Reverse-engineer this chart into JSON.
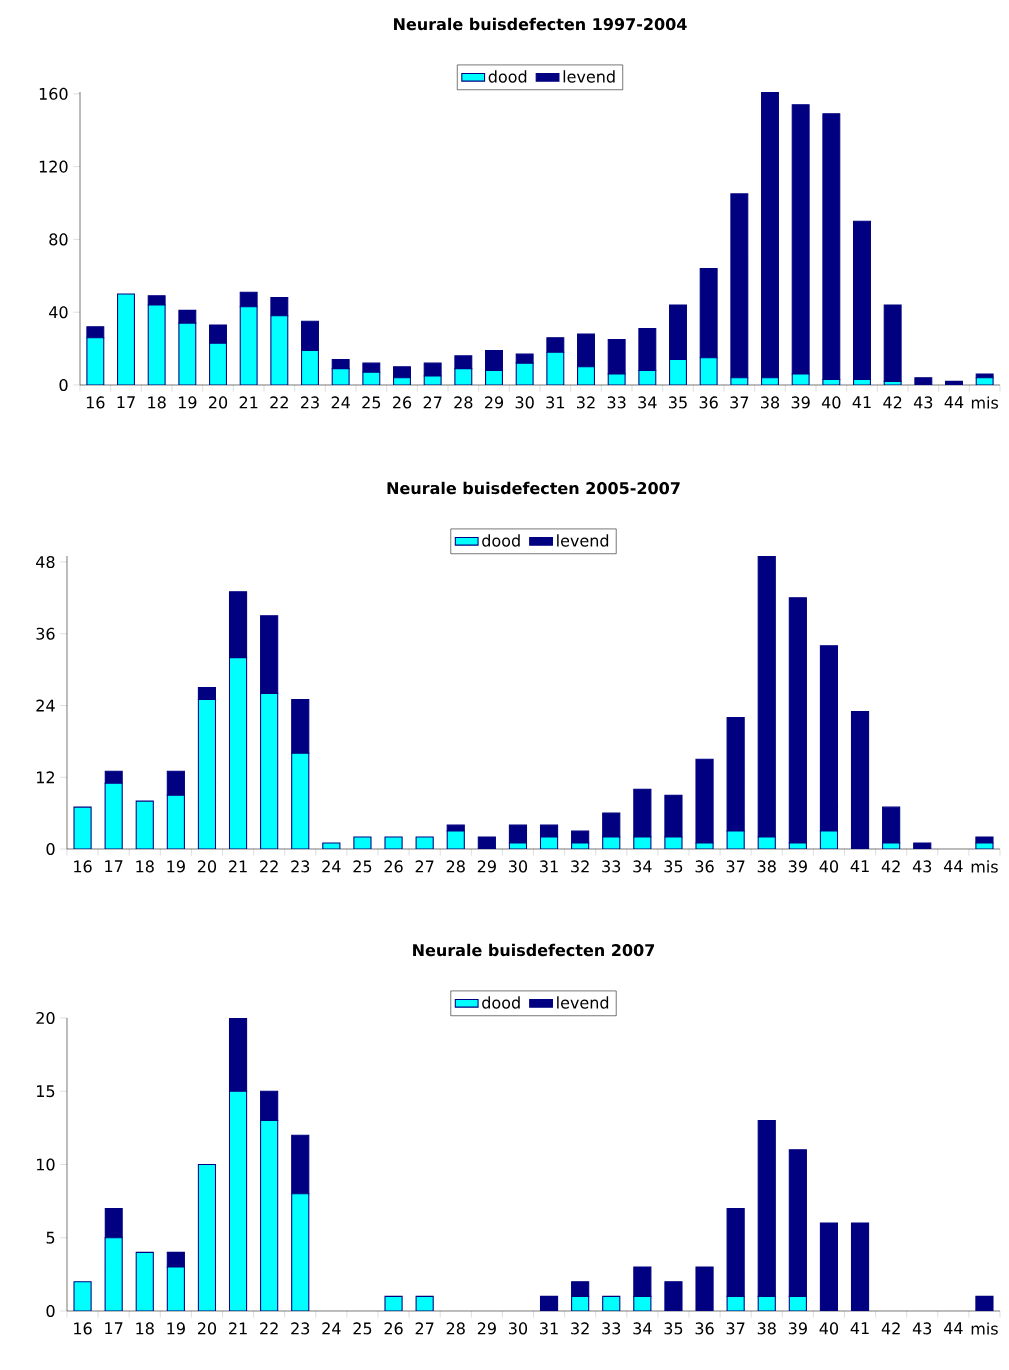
{
  "chart_data": [
    {
      "type": "bar",
      "stacked": true,
      "title": "Neurale buisdefecten 1997-2004",
      "legend": "top",
      "categories": [
        "16",
        "17",
        "18",
        "19",
        "20",
        "21",
        "22",
        "23",
        "24",
        "25",
        "26",
        "27",
        "28",
        "29",
        "30",
        "31",
        "32",
        "33",
        "34",
        "35",
        "36",
        "37",
        "38",
        "39",
        "40",
        "41",
        "42",
        "43",
        "44",
        "mis"
      ],
      "series": [
        {
          "name": "dood",
          "color": "#00ffff",
          "values": [
            26,
            50,
            44,
            34,
            23,
            43,
            38,
            19,
            9,
            7,
            4,
            5,
            9,
            8,
            12,
            18,
            10,
            6,
            8,
            14,
            15,
            4,
            4,
            6,
            3,
            3,
            2,
            0,
            0,
            4
          ]
        },
        {
          "name": "levend",
          "color": "#000080",
          "values": [
            6,
            0,
            5,
            7,
            10,
            8,
            10,
            16,
            5,
            5,
            6,
            7,
            7,
            11,
            5,
            8,
            18,
            19,
            23,
            30,
            49,
            101,
            157,
            148,
            146,
            87,
            42,
            4,
            2,
            2
          ]
        }
      ],
      "ylim": [
        0,
        161
      ],
      "yticks": [
        0,
        40,
        80,
        120,
        160
      ]
    },
    {
      "type": "bar",
      "stacked": true,
      "title": "Neurale buisdefecten 2005-2007",
      "legend": "top",
      "categories": [
        "16",
        "17",
        "18",
        "19",
        "20",
        "21",
        "22",
        "23",
        "24",
        "25",
        "26",
        "27",
        "28",
        "29",
        "30",
        "31",
        "32",
        "33",
        "34",
        "35",
        "36",
        "37",
        "38",
        "39",
        "40",
        "41",
        "42",
        "43",
        "44",
        "mis"
      ],
      "series": [
        {
          "name": "dood",
          "color": "#00ffff",
          "values": [
            7,
            11,
            8,
            9,
            25,
            32,
            26,
            16,
            1,
            2,
            2,
            2,
            3,
            0,
            1,
            2,
            1,
            2,
            2,
            2,
            1,
            3,
            2,
            1,
            3,
            0,
            1,
            0,
            0,
            1
          ]
        },
        {
          "name": "levend",
          "color": "#000080",
          "values": [
            0,
            2,
            0,
            4,
            2,
            11,
            13,
            9,
            0,
            0,
            0,
            0,
            1,
            2,
            3,
            2,
            2,
            4,
            8,
            7,
            14,
            19,
            47,
            41,
            31,
            23,
            6,
            1,
            0,
            1
          ]
        }
      ],
      "ylim": [
        0,
        49
      ],
      "yticks": [
        0,
        12,
        24,
        36,
        48
      ]
    },
    {
      "type": "bar",
      "stacked": true,
      "title": "Neurale buisdefecten 2007",
      "legend": "top",
      "categories": [
        "16",
        "17",
        "18",
        "19",
        "20",
        "21",
        "22",
        "23",
        "24",
        "25",
        "26",
        "27",
        "28",
        "29",
        "30",
        "31",
        "32",
        "33",
        "34",
        "35",
        "36",
        "37",
        "38",
        "39",
        "40",
        "41",
        "42",
        "43",
        "44",
        "mis"
      ],
      "series": [
        {
          "name": "dood",
          "color": "#00ffff",
          "values": [
            2,
            5,
            4,
            3,
            10,
            15,
            13,
            8,
            0,
            0,
            1,
            1,
            0,
            0,
            0,
            0,
            1,
            1,
            1,
            0,
            0,
            1,
            1,
            1,
            0,
            0,
            0,
            0,
            0,
            0
          ]
        },
        {
          "name": "levend",
          "color": "#000080",
          "values": [
            0,
            2,
            0,
            1,
            0,
            5,
            2,
            4,
            0,
            0,
            0,
            0,
            0,
            0,
            0,
            1,
            1,
            0,
            2,
            2,
            3,
            6,
            12,
            10,
            6,
            6,
            0,
            0,
            0,
            1
          ]
        }
      ],
      "ylim": [
        0,
        20
      ],
      "yticks": [
        0,
        5,
        10,
        15,
        20
      ]
    }
  ]
}
